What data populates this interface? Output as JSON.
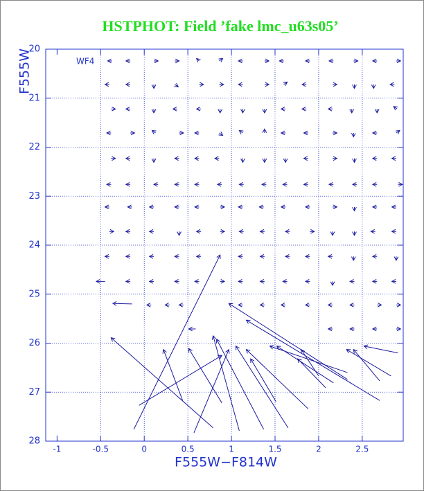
{
  "chart_data": {
    "type": "quiver",
    "title": "HSTPHOT: Field ’fake lmc_u63s05’",
    "x_label": "F555W−F814W",
    "y_label": "F555W",
    "annotation": "WF4",
    "color": "#1a1aa0",
    "axis_color": "#2233cc",
    "title_color": "#22dd22",
    "grid": true,
    "xlim": [
      -1.13,
      2.97
    ],
    "ylim": [
      28,
      20
    ],
    "xticks": [
      -1,
      -0.5,
      0,
      0.5,
      1,
      1.5,
      2,
      2.5
    ],
    "yticks": [
      20,
      21,
      22,
      23,
      24,
      25,
      26,
      27,
      28
    ],
    "arrows": [
      [
        -0.37,
        20.24,
        -0.42,
        20.24
      ],
      [
        -0.16,
        20.24,
        -0.21,
        20.24
      ],
      [
        0.11,
        20.24,
        0.16,
        20.24
      ],
      [
        0.35,
        20.24,
        0.4,
        20.24
      ],
      [
        0.63,
        20.24,
        0.6,
        20.19
      ],
      [
        0.86,
        20.24,
        0.9,
        20.19
      ],
      [
        1.13,
        20.24,
        1.08,
        20.24
      ],
      [
        1.38,
        20.24,
        1.43,
        20.24
      ],
      [
        1.6,
        20.24,
        1.55,
        20.24
      ],
      [
        1.9,
        20.24,
        1.85,
        20.24
      ],
      [
        2.17,
        20.24,
        2.12,
        20.24
      ],
      [
        2.4,
        20.24,
        2.45,
        20.24
      ],
      [
        2.67,
        20.24,
        2.62,
        20.24
      ],
      [
        2.89,
        20.24,
        2.94,
        20.24
      ],
      [
        -0.4,
        20.72,
        -0.45,
        20.72
      ],
      [
        -0.16,
        20.72,
        -0.21,
        20.72
      ],
      [
        0.11,
        20.72,
        0.11,
        20.8
      ],
      [
        0.35,
        20.72,
        0.39,
        20.77
      ],
      [
        0.63,
        20.72,
        0.68,
        20.72
      ],
      [
        0.86,
        20.72,
        0.91,
        20.72
      ],
      [
        1.13,
        20.72,
        1.08,
        20.72
      ],
      [
        1.38,
        20.72,
        1.43,
        20.72
      ],
      [
        1.6,
        20.72,
        1.64,
        20.67
      ],
      [
        1.86,
        20.72,
        1.81,
        20.72
      ],
      [
        2.16,
        20.72,
        2.21,
        20.72
      ],
      [
        2.41,
        20.72,
        2.41,
        20.8
      ],
      [
        2.63,
        20.72,
        2.63,
        20.8
      ],
      [
        2.87,
        20.72,
        2.82,
        20.72
      ],
      [
        -0.38,
        21.22,
        -0.33,
        21.22
      ],
      [
        -0.16,
        21.22,
        -0.21,
        21.22
      ],
      [
        0.11,
        21.22,
        0.11,
        21.3
      ],
      [
        0.38,
        21.22,
        0.33,
        21.22
      ],
      [
        0.65,
        21.22,
        0.6,
        21.22
      ],
      [
        0.87,
        21.22,
        0.87,
        21.3
      ],
      [
        1.13,
        21.22,
        1.13,
        21.3
      ],
      [
        1.38,
        21.22,
        1.38,
        21.3
      ],
      [
        1.62,
        21.22,
        1.57,
        21.22
      ],
      [
        1.86,
        21.22,
        1.81,
        21.22
      ],
      [
        2.16,
        21.22,
        2.11,
        21.22
      ],
      [
        2.38,
        21.22,
        2.38,
        21.3
      ],
      [
        2.67,
        21.22,
        2.67,
        21.3
      ],
      [
        2.9,
        21.22,
        2.86,
        21.17
      ],
      [
        -0.38,
        21.71,
        -0.43,
        21.71
      ],
      [
        -0.16,
        21.71,
        -0.11,
        21.71
      ],
      [
        0.13,
        21.71,
        0.09,
        21.66
      ],
      [
        0.4,
        21.71,
        0.45,
        21.71
      ],
      [
        0.63,
        21.71,
        0.58,
        21.71
      ],
      [
        0.86,
        21.71,
        0.9,
        21.76
      ],
      [
        1.13,
        21.71,
        1.09,
        21.66
      ],
      [
        1.38,
        21.71,
        1.38,
        21.63
      ],
      [
        1.62,
        21.71,
        1.57,
        21.71
      ],
      [
        1.88,
        21.71,
        1.83,
        21.71
      ],
      [
        2.16,
        21.71,
        2.21,
        21.71
      ],
      [
        2.4,
        21.71,
        2.4,
        21.79
      ],
      [
        2.67,
        21.71,
        2.62,
        21.71
      ],
      [
        2.89,
        21.71,
        2.93,
        21.66
      ],
      [
        -0.38,
        22.23,
        -0.33,
        22.23
      ],
      [
        -0.16,
        22.23,
        -0.21,
        22.23
      ],
      [
        0.11,
        22.23,
        0.11,
        22.31
      ],
      [
        0.4,
        22.23,
        0.35,
        22.23
      ],
      [
        0.63,
        22.23,
        0.58,
        22.23
      ],
      [
        0.86,
        22.23,
        0.81,
        22.23
      ],
      [
        1.13,
        22.23,
        1.13,
        22.31
      ],
      [
        1.38,
        22.23,
        1.38,
        22.31
      ],
      [
        1.62,
        22.23,
        1.62,
        22.31
      ],
      [
        1.88,
        22.23,
        1.83,
        22.23
      ],
      [
        2.16,
        22.23,
        2.21,
        22.23
      ],
      [
        2.41,
        22.23,
        2.41,
        22.31
      ],
      [
        2.67,
        22.23,
        2.62,
        22.23
      ],
      [
        2.89,
        22.23,
        2.84,
        22.23
      ],
      [
        -0.38,
        22.76,
        -0.43,
        22.76
      ],
      [
        -0.16,
        22.76,
        -0.21,
        22.76
      ],
      [
        0.16,
        22.76,
        0.11,
        22.76
      ],
      [
        0.4,
        22.76,
        0.35,
        22.76
      ],
      [
        0.63,
        22.76,
        0.58,
        22.76
      ],
      [
        0.89,
        22.76,
        0.84,
        22.76
      ],
      [
        1.14,
        22.76,
        1.09,
        22.76
      ],
      [
        1.4,
        22.76,
        1.35,
        22.76
      ],
      [
        1.64,
        22.76,
        1.59,
        22.76
      ],
      [
        1.88,
        22.76,
        1.83,
        22.76
      ],
      [
        2.17,
        22.76,
        2.12,
        22.76
      ],
      [
        2.44,
        22.76,
        2.39,
        22.76
      ],
      [
        2.67,
        22.76,
        2.62,
        22.76
      ],
      [
        2.91,
        22.76,
        2.96,
        22.76
      ],
      [
        -0.4,
        23.22,
        -0.45,
        23.22
      ],
      [
        -0.14,
        23.22,
        -0.19,
        23.22
      ],
      [
        0.11,
        23.22,
        0.06,
        23.22
      ],
      [
        0.4,
        23.22,
        0.35,
        23.22
      ],
      [
        0.63,
        23.22,
        0.58,
        23.22
      ],
      [
        0.87,
        23.22,
        0.92,
        23.22
      ],
      [
        1.13,
        23.22,
        1.08,
        23.22
      ],
      [
        1.37,
        23.22,
        1.32,
        23.22
      ],
      [
        1.62,
        23.22,
        1.57,
        23.22
      ],
      [
        1.9,
        23.22,
        1.85,
        23.22
      ],
      [
        2.16,
        23.22,
        2.21,
        23.22
      ],
      [
        2.41,
        23.22,
        2.41,
        23.3
      ],
      [
        2.67,
        23.22,
        2.62,
        23.22
      ],
      [
        2.89,
        23.22,
        2.84,
        23.22
      ],
      [
        -0.4,
        23.72,
        -0.35,
        23.72
      ],
      [
        -0.16,
        23.72,
        -0.21,
        23.72
      ],
      [
        0.11,
        23.72,
        0.06,
        23.72
      ],
      [
        0.4,
        23.72,
        0.4,
        23.8
      ],
      [
        0.65,
        23.72,
        0.6,
        23.72
      ],
      [
        0.87,
        23.72,
        0.92,
        23.72
      ],
      [
        1.14,
        23.72,
        1.09,
        23.72
      ],
      [
        1.38,
        23.72,
        1.33,
        23.72
      ],
      [
        1.67,
        23.72,
        1.62,
        23.72
      ],
      [
        1.9,
        23.72,
        1.95,
        23.72
      ],
      [
        2.16,
        23.72,
        2.16,
        23.8
      ],
      [
        2.41,
        23.72,
        2.41,
        23.8
      ],
      [
        2.65,
        23.72,
        2.6,
        23.72
      ],
      [
        2.89,
        23.72,
        2.84,
        23.72
      ],
      [
        -0.4,
        24.23,
        -0.45,
        24.23
      ],
      [
        -0.16,
        24.23,
        -0.21,
        24.23
      ],
      [
        0.11,
        24.23,
        0.06,
        24.23
      ],
      [
        0.4,
        24.23,
        0.35,
        24.23
      ],
      [
        0.65,
        24.23,
        0.6,
        24.23
      ],
      [
        1.13,
        24.23,
        1.08,
        24.23
      ],
      [
        1.38,
        24.23,
        1.33,
        24.23
      ],
      [
        1.67,
        24.23,
        1.62,
        24.23
      ],
      [
        1.9,
        24.23,
        1.85,
        24.23
      ],
      [
        2.16,
        24.23,
        2.11,
        24.23
      ],
      [
        2.4,
        24.23,
        2.4,
        24.31
      ],
      [
        2.67,
        24.23,
        2.62,
        24.23
      ],
      [
        2.89,
        24.23,
        2.89,
        24.31
      ],
      [
        -0.45,
        24.74,
        -0.55,
        24.74
      ],
      [
        -0.16,
        24.74,
        -0.21,
        24.74
      ],
      [
        0.11,
        24.74,
        0.06,
        24.74
      ],
      [
        0.4,
        24.74,
        0.35,
        24.74
      ],
      [
        0.63,
        24.74,
        0.58,
        24.74
      ],
      [
        0.87,
        24.74,
        0.92,
        24.74
      ],
      [
        1.13,
        24.74,
        1.08,
        24.74
      ],
      [
        1.38,
        24.74,
        1.33,
        24.74
      ],
      [
        1.64,
        24.74,
        1.59,
        24.74
      ],
      [
        1.9,
        24.74,
        1.85,
        24.74
      ],
      [
        2.16,
        24.74,
        2.16,
        24.82
      ],
      [
        2.41,
        24.74,
        2.36,
        24.74
      ],
      [
        2.67,
        24.74,
        2.62,
        24.74
      ],
      [
        2.89,
        24.74,
        2.84,
        24.74
      ],
      [
        -0.14,
        25.2,
        -0.36,
        25.19
      ],
      [
        0.08,
        25.22,
        0.03,
        25.22
      ],
      [
        0.29,
        25.22,
        0.24,
        25.22
      ],
      [
        0.45,
        25.22,
        0.4,
        25.22
      ],
      [
        1.13,
        25.22,
        1.08,
        25.22
      ],
      [
        1.38,
        25.22,
        1.33,
        25.22
      ],
      [
        1.62,
        25.22,
        1.57,
        25.22
      ],
      [
        1.9,
        25.22,
        1.85,
        25.22
      ],
      [
        2.16,
        25.22,
        2.11,
        25.22
      ],
      [
        2.41,
        25.22,
        2.36,
        25.22
      ],
      [
        2.67,
        25.22,
        2.72,
        25.22
      ],
      [
        2.89,
        25.22,
        2.94,
        25.22
      ],
      [
        0.59,
        25.71,
        0.51,
        25.71
      ],
      [
        2.16,
        25.71,
        2.11,
        25.71
      ],
      [
        2.41,
        25.71,
        2.36,
        25.71
      ],
      [
        2.67,
        25.71,
        2.62,
        25.71
      ],
      [
        2.89,
        25.71,
        2.94,
        25.71
      ],
      [
        -0.12,
        27.76,
        0.87,
        24.2
      ],
      [
        0.79,
        27.73,
        -0.38,
        25.89
      ],
      [
        0.44,
        27.17,
        0.22,
        26.13
      ],
      [
        -0.06,
        27.27,
        0.89,
        26.25
      ],
      [
        0.89,
        27.22,
        0.51,
        26.11
      ],
      [
        0.57,
        27.83,
        0.97,
        26.13
      ],
      [
        1.09,
        27.79,
        0.79,
        25.85
      ],
      [
        1.37,
        27.76,
        0.83,
        25.92
      ],
      [
        1.65,
        27.73,
        1.05,
        26.06
      ],
      [
        1.88,
        27.34,
        1.17,
        26.13
      ],
      [
        1.51,
        27.19,
        1.22,
        26.32
      ],
      [
        2.7,
        27.17,
        1.17,
        25.53
      ],
      [
        2.33,
        26.74,
        0.97,
        25.19
      ],
      [
        2.33,
        26.6,
        1.44,
        26.06
      ],
      [
        2.17,
        26.81,
        1.52,
        26.06
      ],
      [
        2.08,
        26.91,
        1.76,
        26.32
      ],
      [
        2.0,
        26.67,
        1.8,
        26.13
      ],
      [
        2.83,
        26.67,
        2.32,
        26.13
      ],
      [
        2.7,
        26.77,
        2.4,
        26.13
      ],
      [
        2.91,
        26.2,
        2.52,
        26.06
      ]
    ]
  }
}
